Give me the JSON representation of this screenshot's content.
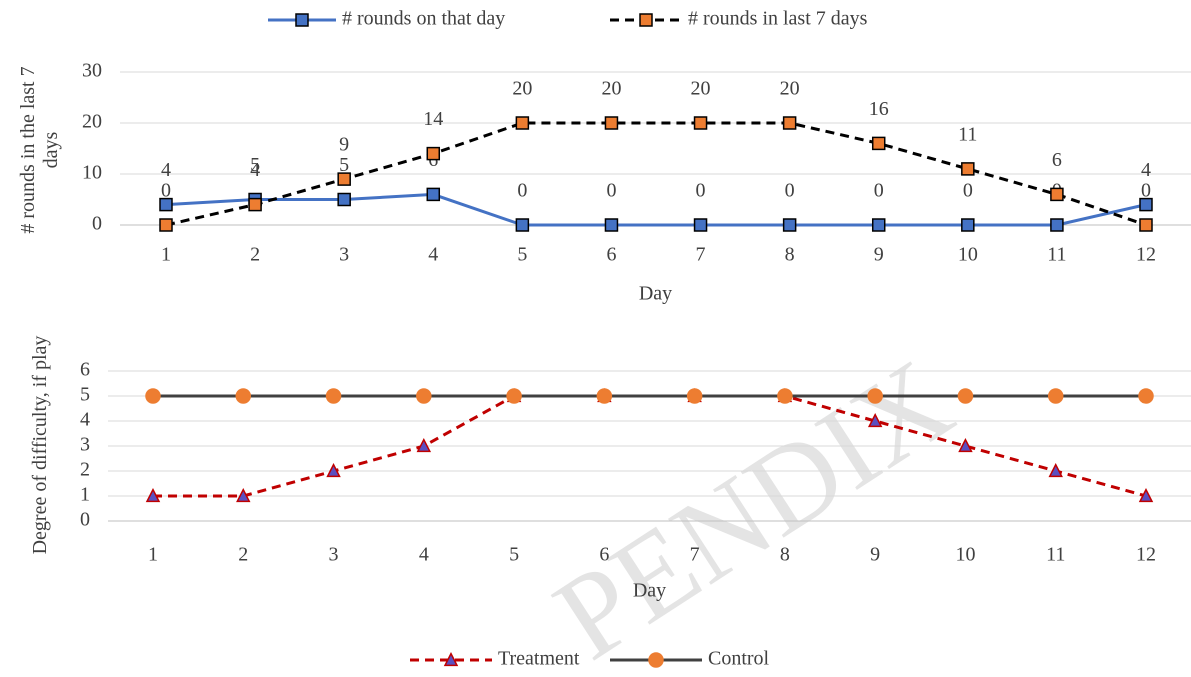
{
  "chart_data": [
    {
      "type": "line",
      "x_label": "Day",
      "y_label": "# rounds in the last 7 days",
      "categories": [
        "1",
        "2",
        "3",
        "4",
        "5",
        "6",
        "7",
        "8",
        "9",
        "10",
        "11",
        "12"
      ],
      "ylim": [
        0,
        30
      ],
      "yticks": [
        0,
        10,
        20,
        30
      ],
      "grid": true,
      "legend": "top",
      "data_labels": true,
      "series": [
        {
          "name": "# rounds on that day",
          "color": "#4472c4",
          "marker": "square",
          "marker_color": "#4472c4",
          "dash": false,
          "values": [
            4,
            5,
            5,
            6,
            0,
            0,
            0,
            0,
            0,
            0,
            0,
            4
          ]
        },
        {
          "name": "# rounds in last 7 days",
          "color": "#000000",
          "marker": "square",
          "marker_color": "#ed7d31",
          "dash": true,
          "values": [
            0,
            4,
            9,
            14,
            20,
            20,
            20,
            20,
            16,
            11,
            6,
            0
          ]
        }
      ]
    },
    {
      "type": "line",
      "x_label": "Day",
      "y_label": "Degree of difficulty, if play",
      "categories": [
        "1",
        "2",
        "3",
        "4",
        "5",
        "6",
        "7",
        "8",
        "9",
        "10",
        "11",
        "12"
      ],
      "ylim": [
        0,
        6
      ],
      "yticks": [
        0,
        1,
        2,
        3,
        4,
        5,
        6
      ],
      "grid": true,
      "legend": "bottom",
      "data_labels": false,
      "series": [
        {
          "name": "Treatment",
          "color": "#c00000",
          "marker": "triangle",
          "marker_color": "#5b4fc0",
          "dash": true,
          "values": [
            1,
            1,
            2,
            3,
            5,
            5,
            5,
            5,
            4,
            3,
            2,
            1
          ]
        },
        {
          "name": "Control",
          "color": "#404040",
          "marker": "circle",
          "marker_color": "#ed7d31",
          "dash": false,
          "values": [
            5,
            5,
            5,
            5,
            5,
            5,
            5,
            5,
            5,
            5,
            5,
            5
          ]
        }
      ]
    }
  ],
  "watermark": "PENDIX"
}
